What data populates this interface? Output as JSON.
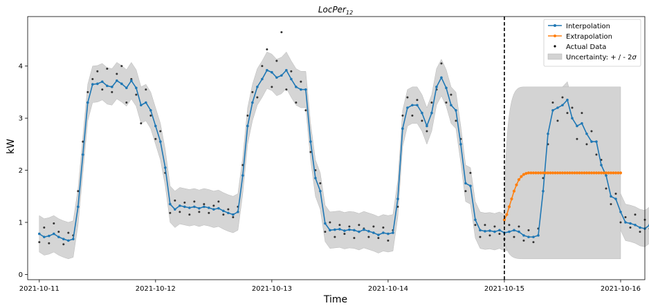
{
  "chart_data": {
    "type": "line",
    "title": "LocPer",
    "title_subscript": "12",
    "xlabel": "Time",
    "ylabel": "kW",
    "x_ticks": [
      "2021-10-11",
      "2021-10-12",
      "2021-10-13",
      "2021-10-14",
      "2021-10-15",
      "2021-10-16"
    ],
    "y_ticks": [
      0,
      1,
      2,
      3,
      4
    ],
    "xlim": [
      "2021-10-10 21:36",
      "2021-10-16 05:00"
    ],
    "ylim": [
      -0.1,
      4.95
    ],
    "forecast_start": "2021-10-15 00:00",
    "grid": false,
    "legend_position": "top-right",
    "legend": {
      "interpolation": "Interpolation",
      "extrapolation": "Extrapolation",
      "actual": "Actual Data",
      "uncertainty": "Uncertainty: + / - 2",
      "uncertainty_symbol": "σ"
    },
    "colors": {
      "interpolation": "#1f77b4",
      "extrapolation": "#ff7f0e",
      "actual": "#000000",
      "uncertainty": "#d3d3d3",
      "divider": "#000000"
    },
    "interpolation": {
      "start": "2021-10-11 00:00",
      "step_hours": 1,
      "values": [
        0.78,
        0.72,
        0.74,
        0.78,
        0.72,
        0.68,
        0.65,
        0.68,
        1.3,
        2.3,
        3.3,
        3.65,
        3.66,
        3.7,
        3.62,
        3.6,
        3.72,
        3.66,
        3.58,
        3.72,
        3.58,
        3.25,
        3.3,
        3.15,
        2.85,
        2.55,
        2.05,
        1.35,
        1.25,
        1.32,
        1.3,
        1.28,
        1.3,
        1.27,
        1.3,
        1.28,
        1.25,
        1.27,
        1.22,
        1.18,
        1.15,
        1.2,
        1.9,
        2.85,
        3.3,
        3.6,
        3.75,
        3.92,
        3.88,
        3.78,
        3.82,
        3.92,
        3.75,
        3.6,
        3.55,
        3.55,
        2.55,
        1.85,
        1.6,
        0.98,
        0.85,
        0.86,
        0.87,
        0.84,
        0.86,
        0.85,
        0.82,
        0.86,
        0.83,
        0.8,
        0.76,
        0.8,
        0.78,
        0.8,
        1.45,
        2.8,
        3.2,
        3.25,
        3.25,
        3.1,
        2.85,
        3.1,
        3.6,
        3.78,
        3.58,
        3.25,
        3.15,
        2.5,
        1.75,
        1.7,
        1.05,
        0.85,
        0.83,
        0.84,
        0.82,
        0.85,
        0.8,
        0.82,
        0.85,
        0.82,
        0.75,
        0.72,
        0.72,
        0.75,
        1.6,
        2.7,
        3.15,
        3.2,
        3.25,
        3.35,
        3.0,
        2.85,
        2.9,
        2.7,
        2.55,
        2.55,
        2.1,
        1.9,
        1.5,
        1.45,
        1.2,
        1.0,
        0.98,
        0.95,
        0.9,
        0.88,
        0.95,
        0.95,
        1.05
      ]
    },
    "uncertainty_halfwidth": 0.35,
    "extrapolation": {
      "start": "2021-10-15 00:00",
      "step_hours": 0.5,
      "values": [
        1.05,
        1.15,
        1.3,
        1.45,
        1.6,
        1.72,
        1.82,
        1.88,
        1.92,
        1.94,
        1.95,
        1.95,
        1.95,
        1.95,
        1.95,
        1.95,
        1.95,
        1.95,
        1.95,
        1.95,
        1.95,
        1.95,
        1.95,
        1.95,
        1.95,
        1.95,
        1.95,
        1.95,
        1.95,
        1.95,
        1.95,
        1.95,
        1.95,
        1.95,
        1.95,
        1.95,
        1.95,
        1.95,
        1.95,
        1.95,
        1.95,
        1.95,
        1.95,
        1.95,
        1.95,
        1.95,
        1.95,
        1.95,
        1.95
      ]
    },
    "extrapolation_uncertainty": {
      "lower": 0.3,
      "upper": 3.6
    },
    "actual": {
      "start": "2021-10-11 00:00",
      "step_hours": 1,
      "values": [
        0.62,
        0.9,
        0.6,
        0.98,
        0.82,
        0.58,
        0.8,
        0.75,
        1.6,
        2.55,
        3.5,
        3.75,
        3.9,
        3.55,
        3.95,
        3.5,
        3.85,
        4.0,
        3.3,
        3.75,
        3.45,
        2.9,
        3.55,
        3.05,
        2.6,
        2.75,
        1.95,
        1.18,
        1.42,
        1.2,
        1.38,
        1.15,
        1.4,
        1.2,
        1.35,
        1.18,
        1.32,
        1.4,
        1.15,
        1.25,
        1.1,
        1.3,
        2.1,
        3.05,
        3.5,
        3.4,
        4.0,
        4.32,
        3.6,
        4.1,
        4.65,
        3.55,
        3.9,
        3.3,
        3.7,
        3.15,
        2.35,
        2.0,
        1.75,
        0.82,
        1.0,
        0.72,
        0.95,
        0.78,
        0.92,
        0.7,
        0.95,
        0.88,
        0.72,
        0.92,
        0.7,
        0.9,
        0.65,
        0.85,
        1.3,
        3.05,
        3.4,
        3.05,
        3.35,
        2.95,
        2.75,
        3.3,
        3.55,
        4.05,
        3.3,
        3.45,
        2.95,
        2.6,
        1.6,
        1.95,
        0.95,
        0.72,
        0.95,
        0.75,
        0.92,
        0.78,
        0.68,
        0.95,
        0.72,
        0.92,
        0.65,
        0.85,
        0.62,
        0.88,
        1.85,
        2.5,
        3.3,
        2.95,
        3.4,
        3.1,
        3.2,
        2.6,
        3.1,
        2.5,
        2.75,
        2.3,
        2.2,
        1.65,
        1.35,
        1.55,
        1.0,
        1.1,
        0.9,
        1.15,
        0.82,
        1.05,
        0.88,
        1.15,
        0.8,
        0.9,
        0.72,
        0.88,
        0.7,
        0.68,
        0.85,
        0.72,
        0.65,
        0.75,
        1.9,
        2.4,
        3.05,
        2.9,
        3.35,
        3.3,
        3.05,
        3.6,
        3.15,
        2.9,
        3.55,
        3.7,
        3.25,
        3.65,
        2.95,
        3.15,
        2.8,
        3.05,
        2.3,
        2.05,
        1.55,
        1.3,
        1.0,
        0.85,
        0.75,
        0.9,
        0.72,
        0.78,
        0.7,
        0.82,
        0.75,
        0.72,
        1.02
      ]
    }
  }
}
